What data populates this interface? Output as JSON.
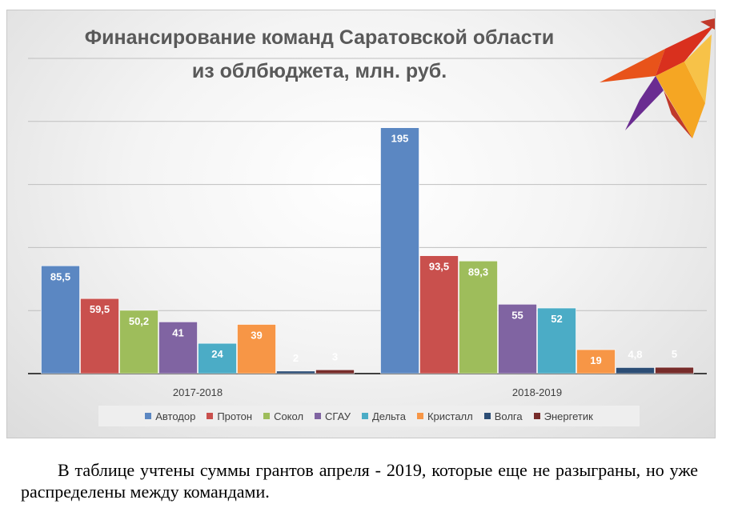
{
  "chart_data": {
    "type": "bar",
    "title": "Финансирование команд Саратовской области из облбюджета, млн. руб.",
    "title_lines": [
      "Финансирование команд Саратовской области",
      "из облбюджета, млн. руб."
    ],
    "categories": [
      "2017-2018",
      "2018-2019"
    ],
    "series": [
      {
        "name": "Автодор",
        "values": [
          85.5,
          195
        ],
        "labels": [
          "85,5",
          "195"
        ],
        "color": "#5b87c2"
      },
      {
        "name": "Протон",
        "values": [
          59.5,
          93.5
        ],
        "labels": [
          "59,5",
          "93,5"
        ],
        "color": "#c9504d"
      },
      {
        "name": "Сокол",
        "values": [
          50.2,
          89.3
        ],
        "labels": [
          "50,2",
          "89,3"
        ],
        "color": "#9ebd5b"
      },
      {
        "name": "СГАУ",
        "values": [
          41,
          55
        ],
        "labels": [
          "41",
          "55"
        ],
        "color": "#8064a2"
      },
      {
        "name": "Дельта",
        "values": [
          24,
          52
        ],
        "labels": [
          "24",
          "52"
        ],
        "color": "#4bacc6"
      },
      {
        "name": "Кристалл",
        "values": [
          39,
          19
        ],
        "labels": [
          "39",
          "19"
        ],
        "color": "#f79646"
      },
      {
        "name": "Волга",
        "values": [
          2,
          4.8
        ],
        "labels": [
          "2",
          "4,8"
        ],
        "color": "#2c4d75"
      },
      {
        "name": "Энергетик",
        "values": [
          3,
          5
        ],
        "labels": [
          "3",
          "5"
        ],
        "color": "#772c2a"
      }
    ],
    "ylim": [
      0,
      250
    ],
    "y_gridlines": [
      0,
      50,
      100,
      150,
      200,
      250
    ],
    "y_tick_labels_shown": false,
    "grid": true,
    "legend": "bottom",
    "data_label_color": "#ffffff"
  },
  "logo": {
    "name": "bird-logo",
    "colors": [
      "#e8531a",
      "#f5a623",
      "#c0392b",
      "#6a2c91"
    ]
  },
  "caption": "В таблице учтены суммы грантов апреля - 2019, которые еще не разыграны, но уже распределены между командами."
}
